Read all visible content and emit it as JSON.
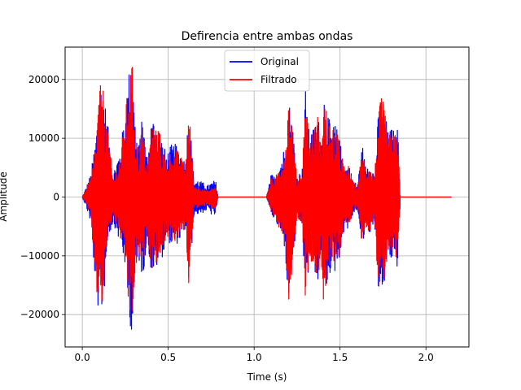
{
  "chart_data": {
    "type": "line",
    "title": "Defirencia entre ambas ondas",
    "xlabel": "Time (s)",
    "ylabel": "Amplitude",
    "xlim": [
      -0.1,
      2.25
    ],
    "ylim": [
      -25500,
      25500
    ],
    "x_ticks": [
      0.0,
      0.5,
      1.0,
      1.5,
      2.0
    ],
    "x_tick_labels": [
      "0.0",
      "0.5",
      "1.0",
      "1.5",
      "2.0"
    ],
    "y_ticks": [
      -20000,
      -10000,
      0,
      10000,
      20000
    ],
    "y_tick_labels": [
      "−20000",
      "−10000",
      "0",
      "10000",
      "20000"
    ],
    "grid": true,
    "legend_position": "upper center",
    "series": [
      {
        "name": "Original",
        "color": "#0000ff",
        "envelope": {
          "t": [
            0.0,
            0.02,
            0.05,
            0.08,
            0.1,
            0.12,
            0.15,
            0.18,
            0.2,
            0.22,
            0.25,
            0.27,
            0.29,
            0.31,
            0.33,
            0.35,
            0.38,
            0.4,
            0.42,
            0.45,
            0.47,
            0.49,
            0.52,
            0.55,
            0.58,
            0.6,
            0.62,
            0.65,
            0.67,
            0.7,
            0.73,
            0.75,
            0.77,
            0.78,
            0.79,
            1.07,
            1.08,
            1.1,
            1.12,
            1.15,
            1.18,
            1.2,
            1.22,
            1.25,
            1.28,
            1.3,
            1.32,
            1.35,
            1.37,
            1.39,
            1.4,
            1.42,
            1.45,
            1.47,
            1.5,
            1.53,
            1.55,
            1.57,
            1.6,
            1.63,
            1.65,
            1.67,
            1.7,
            1.72,
            1.74,
            1.76,
            1.78,
            1.8,
            1.82,
            1.84,
            1.85,
            2.15
          ],
          "upper": [
            0,
            1500,
            4000,
            11000,
            19500,
            19300,
            12000,
            4000,
            6500,
            8000,
            15000,
            21500,
            23200,
            12000,
            9000,
            14000,
            6500,
            13000,
            14000,
            12000,
            9000,
            7500,
            9000,
            9000,
            7500,
            6000,
            16000,
            3000,
            3000,
            2500,
            2000,
            2500,
            2800,
            2500,
            0,
            0,
            1000,
            4000,
            3500,
            6000,
            9000,
            17000,
            14000,
            3500,
            5000,
            19000,
            11000,
            12000,
            15000,
            9000,
            19500,
            16000,
            11000,
            13000,
            9500,
            5000,
            6000,
            3500,
            2000,
            9000,
            5000,
            6500,
            4000,
            13000,
            18500,
            15000,
            11000,
            12000,
            11000,
            12000,
            0,
            0
          ],
          "lower": [
            0,
            -1500,
            -4500,
            -17000,
            -20500,
            -19500,
            -7000,
            -4500,
            -6000,
            -8000,
            -12000,
            -21000,
            -23200,
            -14000,
            -11000,
            -14000,
            -7500,
            -13000,
            -13000,
            -11000,
            -10000,
            -7000,
            -8500,
            -8000,
            -7000,
            -5500,
            -16000,
            -3000,
            -3000,
            -2700,
            -2200,
            -3000,
            -3200,
            -2700,
            0,
            0,
            -1000,
            -3000,
            -4000,
            -6000,
            -9000,
            -19000,
            -13000,
            -4000,
            -5000,
            -19000,
            -11000,
            -12000,
            -16000,
            -9000,
            -19000,
            -16000,
            -12000,
            -13000,
            -10000,
            -4500,
            -6000,
            -3500,
            -2000,
            -9000,
            -5000,
            -6500,
            -4000,
            -15000,
            -18500,
            -15000,
            -10000,
            -11000,
            -12000,
            -12000,
            0,
            0
          ]
        }
      },
      {
        "name": "Filtrado",
        "color": "#ff0000",
        "envelope": {
          "t": [
            0.0,
            0.02,
            0.05,
            0.08,
            0.1,
            0.12,
            0.15,
            0.18,
            0.2,
            0.22,
            0.25,
            0.27,
            0.29,
            0.31,
            0.33,
            0.35,
            0.38,
            0.4,
            0.42,
            0.45,
            0.47,
            0.49,
            0.52,
            0.55,
            0.58,
            0.6,
            0.62,
            0.65,
            0.67,
            0.7,
            0.73,
            0.75,
            0.77,
            0.78,
            0.79,
            1.07,
            1.08,
            1.1,
            1.12,
            1.15,
            1.18,
            1.2,
            1.22,
            1.25,
            1.28,
            1.3,
            1.32,
            1.35,
            1.37,
            1.39,
            1.4,
            1.42,
            1.45,
            1.47,
            1.5,
            1.53,
            1.55,
            1.57,
            1.6,
            1.63,
            1.65,
            1.67,
            1.7,
            1.72,
            1.74,
            1.76,
            1.78,
            1.8,
            1.82,
            1.84,
            1.85,
            2.15
          ],
          "upper": [
            0,
            1200,
            3500,
            10000,
            19000,
            19000,
            11000,
            3000,
            5000,
            7000,
            14000,
            21000,
            23000,
            11000,
            8000,
            13000,
            5000,
            12000,
            13000,
            11000,
            8000,
            6500,
            8000,
            8000,
            6500,
            5000,
            15500,
            2000,
            2000,
            1500,
            1000,
            1500,
            1800,
            1500,
            0,
            0,
            800,
            3500,
            3000,
            5500,
            8500,
            16500,
            13500,
            3000,
            4500,
            18500,
            10500,
            11500,
            14500,
            8500,
            19000,
            15500,
            10500,
            12500,
            9000,
            4500,
            5500,
            3000,
            1500,
            8500,
            4500,
            6000,
            3500,
            12500,
            18000,
            14500,
            10500,
            11500,
            10500,
            11500,
            0,
            0
          ],
          "lower": [
            0,
            -1200,
            -4000,
            -16000,
            -20000,
            -19000,
            -6000,
            -3500,
            -5000,
            -7000,
            -11000,
            -20000,
            -22000,
            -13000,
            -10000,
            -13000,
            -6500,
            -12000,
            -12000,
            -10000,
            -9000,
            -6500,
            -8000,
            -7500,
            -6500,
            -5000,
            -15500,
            -2000,
            -2000,
            -1800,
            -1200,
            -2000,
            -2200,
            -1800,
            0,
            0,
            -800,
            -2500,
            -3500,
            -5500,
            -8500,
            -18500,
            -12500,
            -3500,
            -4500,
            -18500,
            -10500,
            -11500,
            -15500,
            -8500,
            -18500,
            -15500,
            -11500,
            -12500,
            -9500,
            -4000,
            -5500,
            -3000,
            -1500,
            -8500,
            -4500,
            -6000,
            -3500,
            -14500,
            -18000,
            -14500,
            -9500,
            -10500,
            -11500,
            -11500,
            0,
            0
          ]
        }
      }
    ]
  }
}
